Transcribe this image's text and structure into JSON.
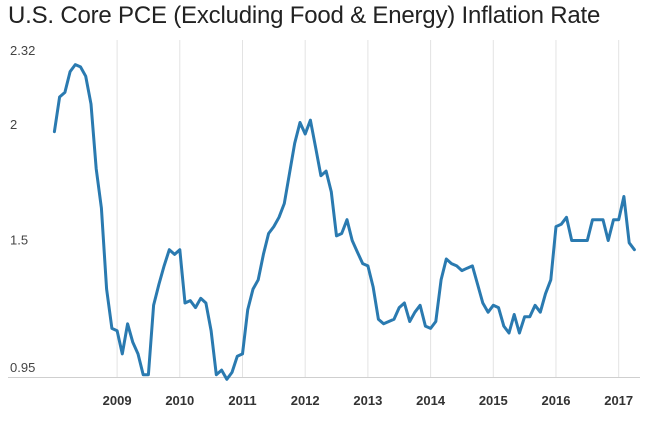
{
  "chart_data": {
    "type": "line",
    "title": "U.S. Core PCE (Excluding Food & Energy) Inflation Rate",
    "xlabel": "",
    "ylabel": "",
    "ylim": [
      0.95,
      2.32
    ],
    "y_ticks": [
      {
        "value": 2.32,
        "label": "2.32"
      },
      {
        "value": 2,
        "label": "2"
      },
      {
        "value": 1.5,
        "label": "1.5"
      },
      {
        "value": 0.95,
        "label": "0.95"
      }
    ],
    "x_ticks": [
      {
        "value": 2009,
        "label": "2009"
      },
      {
        "value": 2010,
        "label": "2010"
      },
      {
        "value": 2011,
        "label": "2011"
      },
      {
        "value": 2012,
        "label": "2012"
      },
      {
        "value": 2013,
        "label": "2013"
      },
      {
        "value": 2014,
        "label": "2014"
      },
      {
        "value": 2015,
        "label": "2015"
      },
      {
        "value": 2016,
        "label": "2016"
      },
      {
        "value": 2017,
        "label": "2017"
      }
    ],
    "grid": {
      "y": false,
      "x": true
    },
    "legend": "none",
    "series_color": "#2a7ab0",
    "series": [
      {
        "x": [
          2008.0,
          2008.083,
          2008.167,
          2008.25,
          2008.333,
          2008.417,
          2008.5,
          2008.583,
          2008.667,
          2008.75,
          2008.833,
          2008.917,
          2009.0,
          2009.083,
          2009.167,
          2009.25,
          2009.333,
          2009.417,
          2009.5,
          2009.583,
          2009.667,
          2009.75,
          2009.833,
          2009.917,
          2010.0,
          2010.083,
          2010.167,
          2010.25,
          2010.333,
          2010.417,
          2010.5,
          2010.583,
          2010.667,
          2010.75,
          2010.833,
          2010.917,
          2011.0,
          2011.083,
          2011.167,
          2011.25,
          2011.333,
          2011.417,
          2011.5,
          2011.583,
          2011.667,
          2011.75,
          2011.833,
          2011.917,
          2012.0,
          2012.083,
          2012.167,
          2012.25,
          2012.333,
          2012.417,
          2012.5,
          2012.583,
          2012.667,
          2012.75,
          2012.833,
          2012.917,
          2013.0,
          2013.083,
          2013.167,
          2013.25,
          2013.333,
          2013.417,
          2013.5,
          2013.583,
          2013.667,
          2013.75,
          2013.833,
          2013.917,
          2014.0,
          2014.083,
          2014.167,
          2014.25,
          2014.333,
          2014.417,
          2014.5,
          2014.583,
          2014.667,
          2014.75,
          2014.833,
          2014.917,
          2015.0,
          2015.083,
          2015.167,
          2015.25,
          2015.333,
          2015.417,
          2015.5,
          2015.583,
          2015.667,
          2015.75,
          2015.833,
          2015.917,
          2016.0,
          2016.083,
          2016.167,
          2016.25,
          2016.333,
          2016.417,
          2016.5,
          2016.583,
          2016.667,
          2016.75,
          2016.833,
          2016.917,
          2017.0,
          2017.083,
          2017.167,
          2017.25
        ],
        "y": [
          2.01,
          2.16,
          2.18,
          2.27,
          2.3,
          2.29,
          2.25,
          2.13,
          1.85,
          1.68,
          1.33,
          1.16,
          1.15,
          1.05,
          1.18,
          1.1,
          1.05,
          0.96,
          0.96,
          1.26,
          1.35,
          1.43,
          1.5,
          1.48,
          1.5,
          1.27,
          1.28,
          1.25,
          1.29,
          1.27,
          1.15,
          0.96,
          0.98,
          0.94,
          0.97,
          1.04,
          1.05,
          1.24,
          1.33,
          1.37,
          1.48,
          1.57,
          1.6,
          1.64,
          1.7,
          1.83,
          1.96,
          2.05,
          2.0,
          2.06,
          1.94,
          1.82,
          1.84,
          1.75,
          1.56,
          1.57,
          1.63,
          1.54,
          1.49,
          1.44,
          1.43,
          1.34,
          1.2,
          1.18,
          1.19,
          1.2,
          1.25,
          1.27,
          1.19,
          1.23,
          1.26,
          1.17,
          1.16,
          1.19,
          1.37,
          1.46,
          1.44,
          1.43,
          1.41,
          1.42,
          1.43,
          1.35,
          1.27,
          1.23,
          1.26,
          1.25,
          1.17,
          1.14,
          1.22,
          1.14,
          1.21,
          1.21,
          1.26,
          1.23,
          1.31,
          1.37,
          1.6,
          1.61,
          1.64,
          1.54,
          1.54,
          1.54,
          1.54,
          1.63,
          1.63,
          1.63,
          1.54,
          1.63,
          1.63,
          1.73,
          1.53,
          1.5
        ]
      }
    ]
  }
}
